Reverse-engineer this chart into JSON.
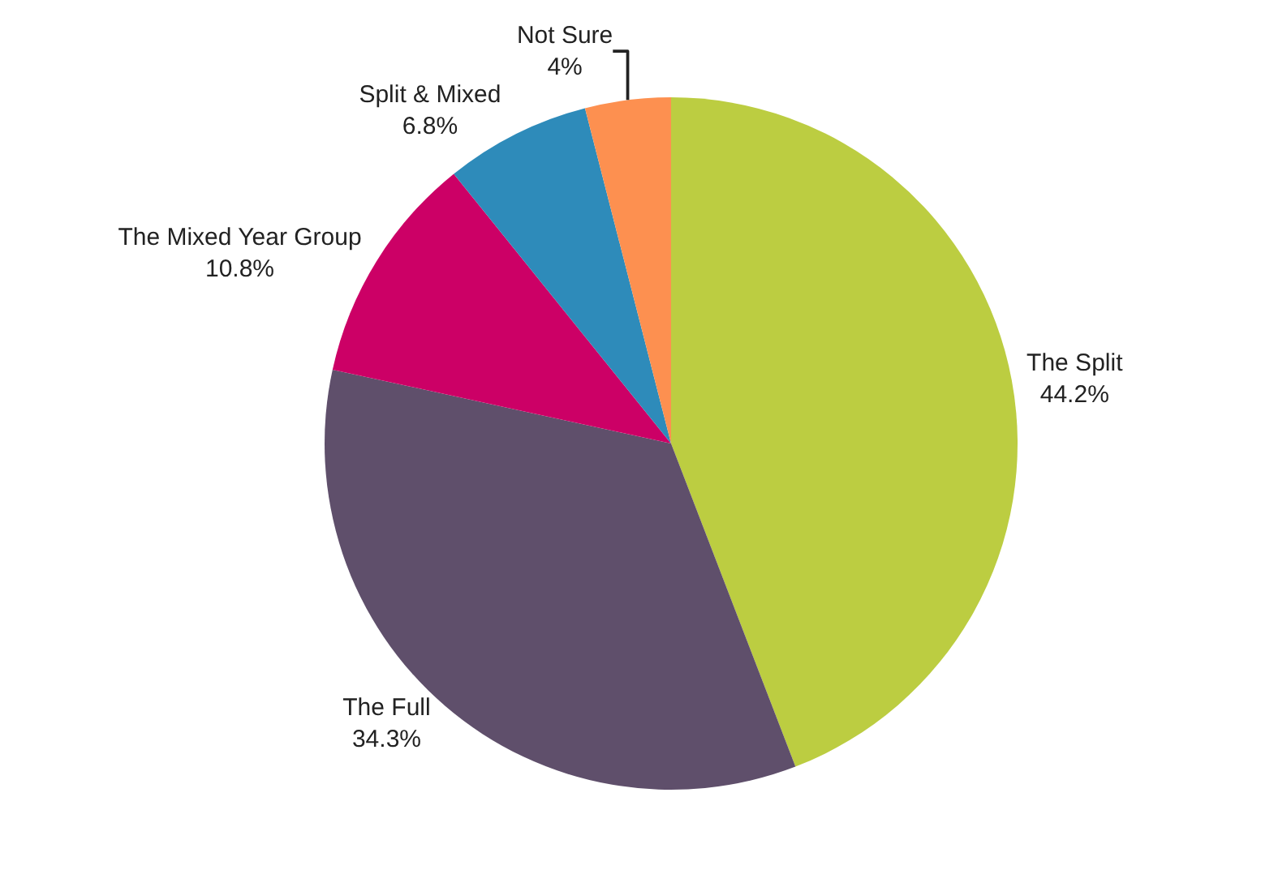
{
  "chart_data": {
    "type": "pie",
    "categories": [
      "The Split",
      "The Full",
      "The Mixed Year Group",
      "Split & Mixed",
      "Not Sure"
    ],
    "values": [
      44.2,
      34.3,
      10.8,
      6.8,
      4
    ],
    "value_labels": [
      "44.2%",
      "34.3%",
      "10.8%",
      "6.8%",
      "4%"
    ],
    "colors": [
      "#bccd41",
      "#5f4f6b",
      "#cc0066",
      "#2e8bba",
      "#fd9050"
    ],
    "legend": false
  }
}
